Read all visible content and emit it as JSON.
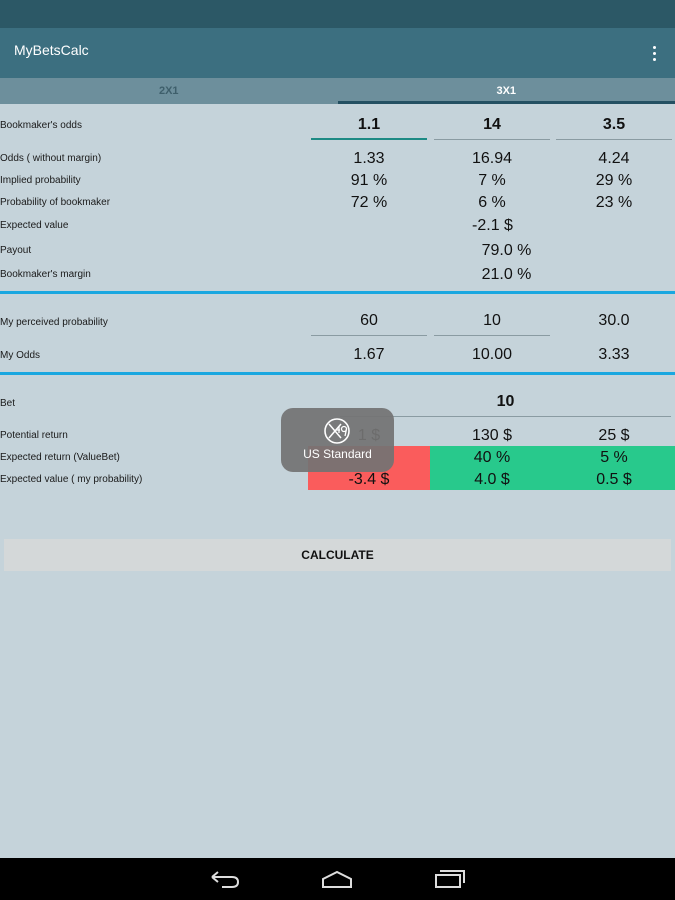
{
  "app": {
    "title": "MyBetsCalc"
  },
  "tabs": [
    {
      "label": "2X1",
      "active": false
    },
    {
      "label": "3X1",
      "active": true
    }
  ],
  "rows": {
    "bookmaker_odds": {
      "label": "Bookmaker's odds",
      "values": [
        "1.1",
        "14",
        "3.5"
      ]
    },
    "odds_without_margin": {
      "label": "Odds ( without margin)",
      "values": [
        "1.33",
        "16.94",
        "4.24"
      ]
    },
    "implied_probability": {
      "label": "Implied probability",
      "values": [
        "91 %",
        "7 %",
        "29 %"
      ]
    },
    "probability_bookmaker": {
      "label": "Probability of bookmaker",
      "values": [
        "72 %",
        "6 %",
        "23 %"
      ]
    },
    "expected_value": {
      "label": "Expected value",
      "value": "-2.1 $"
    },
    "payout": {
      "label": "Payout",
      "value": "79.0 %"
    },
    "bookmaker_margin": {
      "label": "Bookmaker's margin",
      "value": "21.0 %"
    },
    "my_perceived_probability": {
      "label": "My perceived probability",
      "values": [
        "60",
        "10",
        "30.0"
      ]
    },
    "my_odds": {
      "label": "My Odds",
      "values": [
        "1.67",
        "10.00",
        "3.33"
      ]
    },
    "bet": {
      "label": "Bet",
      "value": "10"
    },
    "potential_return": {
      "label": "Potential return",
      "values": [
        "1 $",
        "130 $",
        "25 $"
      ]
    },
    "expected_return": {
      "label": "Expected return (ValueBet)",
      "values": [
        "",
        "40 %",
        "5 %"
      ]
    },
    "expected_value_my": {
      "label": "Expected value ( my probability)",
      "values": [
        "-3.4 $",
        "4.0 $",
        "0.5 $"
      ]
    }
  },
  "colors": {
    "negative": "#fa5c5c",
    "positive": "#28c98c",
    "divider": "#1aa7e0"
  },
  "calculate_button": {
    "label": "CALCULATE"
  },
  "toast": {
    "text": "US Standard",
    "icon": "x49-logo-icon"
  },
  "nav": {
    "icons": [
      "back-icon",
      "home-icon",
      "recent-apps-icon"
    ]
  }
}
